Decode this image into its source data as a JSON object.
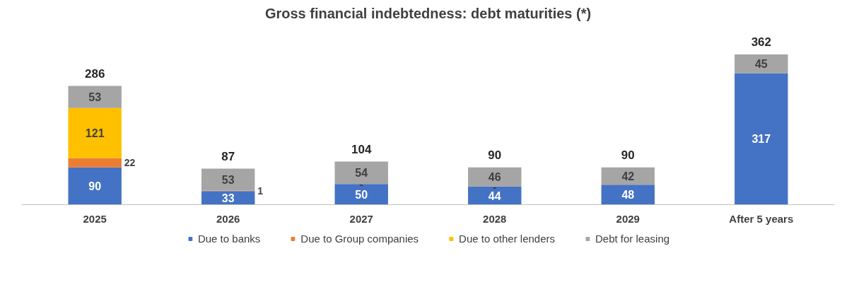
{
  "chart_data": {
    "type": "bar",
    "title": "Gross financial indebtedness: debt maturities (*)",
    "stacked": true,
    "categories": [
      "2025",
      "2026",
      "2027",
      "2028",
      "2029",
      "After 5 years"
    ],
    "series": [
      {
        "name": "Due to banks",
        "color": "#4472c4",
        "values": [
          90,
          33,
          50,
          44,
          48,
          317
        ],
        "value_labels": [
          "90",
          "33",
          "50",
          "44",
          "48",
          "317"
        ]
      },
      {
        "name": "Due to Group companies",
        "color": "#ed7d31",
        "values": [
          22,
          1,
          0,
          0,
          null,
          null
        ],
        "value_labels": [
          "22",
          "1",
          "-",
          "-",
          null,
          null
        ]
      },
      {
        "name": "Due to other lenders",
        "color": "#ffc000",
        "values": [
          121,
          null,
          null,
          null,
          null,
          null
        ],
        "value_labels": [
          "121",
          null,
          null,
          null,
          null,
          null
        ]
      },
      {
        "name": "Debt for leasing",
        "color": "#a5a5a5",
        "values": [
          53,
          53,
          54,
          46,
          42,
          45
        ],
        "value_labels": [
          "53",
          "53",
          "54",
          "46",
          "42",
          "45"
        ]
      }
    ],
    "totals": [
      "286",
      "87",
      "104",
      "90",
      "90",
      "362"
    ],
    "legend": "bottom"
  }
}
